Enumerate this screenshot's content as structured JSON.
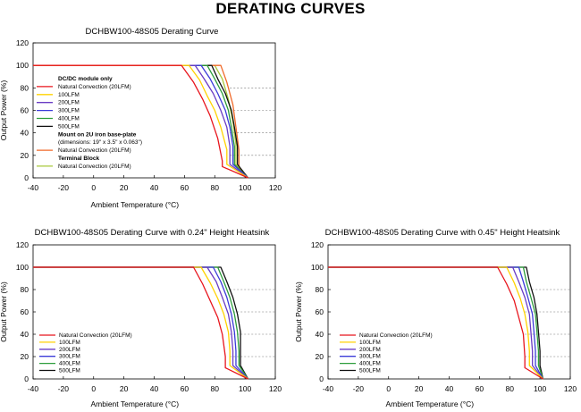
{
  "page": {
    "title": "DERATING CURVES"
  },
  "chart_data": [
    {
      "type": "line",
      "title": "DCHBW100-48S05 Derating Curve",
      "xlabel": "Ambient Temperature (°C)",
      "ylabel": "Output Power (%)",
      "xlim": [
        -40,
        120
      ],
      "ylim": [
        0,
        120
      ],
      "xticks": [
        -40,
        -20,
        0,
        20,
        40,
        60,
        80,
        100,
        120
      ],
      "yticks": [
        0,
        20,
        40,
        60,
        80,
        100,
        120
      ],
      "grid": "dashed-partial",
      "legend_position": "inside-left",
      "legend": [
        {
          "kind": "header",
          "label": "DC/DC module only"
        },
        {
          "kind": "series",
          "ref": 0
        },
        {
          "kind": "series",
          "ref": 1
        },
        {
          "kind": "series",
          "ref": 2
        },
        {
          "kind": "series",
          "ref": 3
        },
        {
          "kind": "series",
          "ref": 4
        },
        {
          "kind": "series",
          "ref": 5
        },
        {
          "kind": "header",
          "label": "Mount on 2U iron base-plate"
        },
        {
          "kind": "note",
          "label": "(dimensions: 19\" x 3.5\" x 0.063\")"
        },
        {
          "kind": "series",
          "ref": 6
        },
        {
          "kind": "header",
          "label": "Terminal Block"
        },
        {
          "kind": "series",
          "ref": 7
        }
      ],
      "series": [
        {
          "name": "Natural Convection (20LFM)",
          "color": "#e8141c",
          "x": [
            -40,
            58,
            66,
            72,
            77,
            82,
            85,
            85,
            102
          ],
          "y": [
            100,
            100,
            85,
            70,
            55,
            35,
            15,
            10,
            0
          ]
        },
        {
          "name": "100LFM",
          "color": "#ffd200",
          "x": [
            -40,
            63,
            70,
            75,
            80,
            84,
            88,
            88,
            102
          ],
          "y": [
            100,
            100,
            87,
            73,
            60,
            45,
            25,
            12,
            0
          ]
        },
        {
          "name": "200LFM",
          "color": "#6a3cc4",
          "x": [
            -40,
            67,
            73,
            79,
            84,
            88,
            90,
            90,
            102
          ],
          "y": [
            100,
            100,
            88,
            75,
            60,
            45,
            28,
            12,
            0
          ]
        },
        {
          "name": "300LFM",
          "color": "#3b3bd9",
          "x": [
            -40,
            71,
            77,
            82,
            87,
            90,
            92,
            92,
            102
          ],
          "y": [
            100,
            100,
            88,
            75,
            60,
            45,
            28,
            12,
            0
          ]
        },
        {
          "name": "400LFM",
          "color": "#2e9e3c",
          "x": [
            -40,
            75,
            80,
            85,
            89,
            91,
            93,
            93,
            102
          ],
          "y": [
            100,
            100,
            88,
            75,
            60,
            45,
            28,
            12,
            0
          ]
        },
        {
          "name": "500LFM",
          "color": "#111111",
          "x": [
            -40,
            78,
            82,
            87,
            91,
            93,
            95,
            95,
            102
          ],
          "y": [
            100,
            100,
            88,
            75,
            60,
            45,
            28,
            12,
            0
          ]
        },
        {
          "name": "Natural Convection (20LFM)",
          "color": "#f06a2a",
          "x": [
            -40,
            84,
            88,
            92,
            94,
            96,
            96,
            102
          ],
          "y": [
            100,
            100,
            85,
            65,
            45,
            25,
            10,
            0
          ]
        },
        {
          "name": "Natural Convection (20LFM)",
          "color": "#a8c83c",
          "x": [
            -40,
            80,
            85,
            89,
            92,
            94,
            94,
            102
          ],
          "y": [
            100,
            100,
            88,
            70,
            50,
            30,
            12,
            0
          ]
        }
      ]
    },
    {
      "type": "line",
      "title": "DCHBW100-48S05 Derating Curve with 0.24\" Height Heatsink",
      "xlabel": "Ambient Temperature (°C)",
      "ylabel": "Output Power (%)",
      "xlim": [
        -40,
        120
      ],
      "ylim": [
        0,
        120
      ],
      "xticks": [
        -40,
        -20,
        0,
        20,
        40,
        60,
        80,
        100,
        120
      ],
      "yticks": [
        0,
        20,
        40,
        60,
        80,
        100,
        120
      ],
      "grid": "dashed-partial",
      "legend_position": "bottom-left",
      "legend": [
        {
          "kind": "series",
          "ref": 0
        },
        {
          "kind": "series",
          "ref": 1
        },
        {
          "kind": "series",
          "ref": 2
        },
        {
          "kind": "series",
          "ref": 3
        },
        {
          "kind": "series",
          "ref": 4
        },
        {
          "kind": "series",
          "ref": 5
        }
      ],
      "series": [
        {
          "name": "Natural Convection (20LFM)",
          "color": "#e8141c",
          "x": [
            -40,
            66,
            72,
            77,
            82,
            85,
            87,
            87,
            102
          ],
          "y": [
            100,
            100,
            85,
            70,
            55,
            40,
            20,
            10,
            0
          ]
        },
        {
          "name": "100LFM",
          "color": "#ffd200",
          "x": [
            -40,
            71,
            77,
            82,
            86,
            89,
            90,
            90,
            102
          ],
          "y": [
            100,
            100,
            86,
            72,
            58,
            42,
            25,
            12,
            0
          ]
        },
        {
          "name": "200LFM",
          "color": "#6a3cc4",
          "x": [
            -40,
            75,
            81,
            85,
            89,
            91,
            92,
            92,
            102
          ],
          "y": [
            100,
            100,
            87,
            73,
            58,
            42,
            25,
            12,
            0
          ]
        },
        {
          "name": "300LFM",
          "color": "#3b3bd9",
          "x": [
            -40,
            79,
            84,
            88,
            91,
            93,
            94,
            94,
            102
          ],
          "y": [
            100,
            100,
            87,
            73,
            58,
            42,
            25,
            12,
            0
          ]
        },
        {
          "name": "400LFM",
          "color": "#2e9e3c",
          "x": [
            -40,
            82,
            86,
            90,
            93,
            95,
            96,
            96,
            102
          ],
          "y": [
            100,
            100,
            87,
            73,
            58,
            42,
            25,
            12,
            0
          ]
        },
        {
          "name": "500LFM",
          "color": "#111111",
          "x": [
            -40,
            84,
            88,
            92,
            95,
            97,
            97,
            97,
            102
          ],
          "y": [
            100,
            100,
            87,
            73,
            58,
            42,
            25,
            12,
            0
          ]
        }
      ]
    },
    {
      "type": "line",
      "title": "DCHBW100-48S05 Derating Curve with 0.45\" Height Heatsink",
      "xlabel": "Ambient Temperature (°C)",
      "ylabel": "Output Power (%)",
      "xlim": [
        -40,
        120
      ],
      "ylim": [
        0,
        120
      ],
      "xticks": [
        -40,
        -20,
        0,
        20,
        40,
        60,
        80,
        100,
        120
      ],
      "yticks": [
        0,
        20,
        40,
        60,
        80,
        100,
        120
      ],
      "grid": "dashed-partial",
      "legend_position": "bottom-left",
      "legend": [
        {
          "kind": "series",
          "ref": 0
        },
        {
          "kind": "series",
          "ref": 1
        },
        {
          "kind": "series",
          "ref": 2
        },
        {
          "kind": "series",
          "ref": 3
        },
        {
          "kind": "series",
          "ref": 4
        },
        {
          "kind": "series",
          "ref": 5
        }
      ],
      "series": [
        {
          "name": "Natural Convection (20LFM)",
          "color": "#e8141c",
          "x": [
            -40,
            72,
            78,
            83,
            86,
            89,
            90,
            90,
            102
          ],
          "y": [
            100,
            100,
            85,
            70,
            55,
            40,
            20,
            10,
            0
          ]
        },
        {
          "name": "100LFM",
          "color": "#ffd200",
          "x": [
            -40,
            78,
            83,
            87,
            90,
            92,
            93,
            93,
            102
          ],
          "y": [
            100,
            100,
            86,
            72,
            58,
            42,
            25,
            12,
            0
          ]
        },
        {
          "name": "200LFM",
          "color": "#6a3cc4",
          "x": [
            -40,
            82,
            86,
            90,
            93,
            94,
            95,
            95,
            102
          ],
          "y": [
            100,
            100,
            87,
            73,
            58,
            42,
            25,
            12,
            0
          ]
        },
        {
          "name": "300LFM",
          "color": "#3b3bd9",
          "x": [
            -40,
            86,
            89,
            92,
            95,
            96,
            97,
            97,
            102
          ],
          "y": [
            100,
            100,
            87,
            73,
            58,
            42,
            25,
            12,
            0
          ]
        },
        {
          "name": "400LFM",
          "color": "#2e9e3c",
          "x": [
            -40,
            89,
            91,
            94,
            97,
            98,
            99,
            99,
            102
          ],
          "y": [
            100,
            100,
            87,
            73,
            58,
            42,
            25,
            12,
            0
          ]
        },
        {
          "name": "500LFM",
          "color": "#111111",
          "x": [
            -40,
            91,
            93,
            96,
            98,
            99,
            100,
            100,
            102
          ],
          "y": [
            100,
            100,
            87,
            73,
            58,
            42,
            25,
            12,
            0
          ]
        }
      ]
    }
  ]
}
